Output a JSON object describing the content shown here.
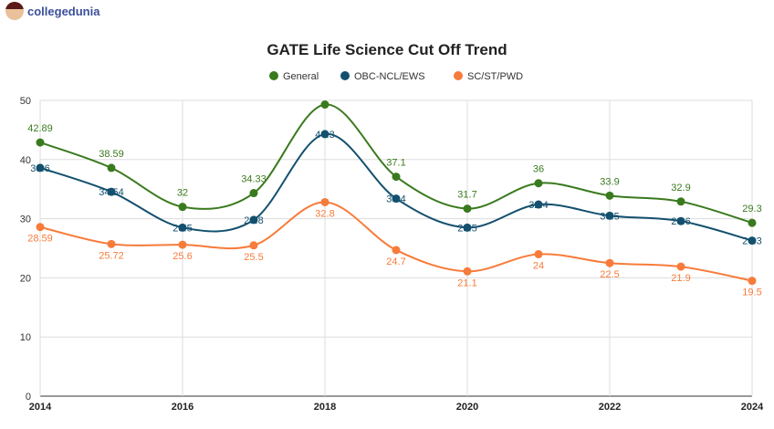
{
  "logo": {
    "text": "collegedunia"
  },
  "chart_data": {
    "type": "line",
    "title": "GATE Life Science Cut Off Trend",
    "x": [
      2014,
      2015,
      2016,
      2017,
      2018,
      2019,
      2020,
      2021,
      2022,
      2023,
      2024
    ],
    "x_tick_labels": [
      "2014",
      "2016",
      "2018",
      "2020",
      "2022",
      "2024"
    ],
    "ylim": [
      0,
      50
    ],
    "y_ticks": [
      0,
      10,
      20,
      30,
      40,
      50
    ],
    "grid": true,
    "legend": "top",
    "smooth": true,
    "series": [
      {
        "name": "General",
        "color": "#3a7a1e",
        "values": [
          42.89,
          38.59,
          32,
          34.33,
          49.3,
          37.1,
          31.7,
          36,
          33.9,
          32.9,
          29.3
        ],
        "labels": [
          "42.89",
          "38.59",
          "32",
          "34.33",
          null,
          "37.1",
          "31.7",
          "36",
          "33.9",
          "32.9",
          "29.3"
        ]
      },
      {
        "name": "OBC-NCL/EWS",
        "color": "#13506e",
        "values": [
          38.6,
          34.54,
          28.5,
          29.8,
          44.3,
          33.4,
          28.5,
          32.4,
          30.5,
          29.6,
          26.3
        ],
        "labels": [
          "38.6",
          "34.54",
          "28.5",
          "29.8",
          "44.3",
          "33.4",
          "28.5",
          "32.4",
          "30.5",
          "29.6",
          "26.3"
        ]
      },
      {
        "name": "SC/ST/PWD",
        "color": "#f77b3a",
        "values": [
          28.59,
          25.72,
          25.6,
          25.5,
          32.8,
          24.7,
          21.1,
          24,
          22.5,
          21.9,
          19.5
        ],
        "labels": [
          "28.59",
          "25.72",
          "25.6",
          "25.5",
          "32.8",
          "24.7",
          "21.1",
          "24",
          "22.5",
          "21.9",
          "19.5"
        ]
      }
    ]
  }
}
